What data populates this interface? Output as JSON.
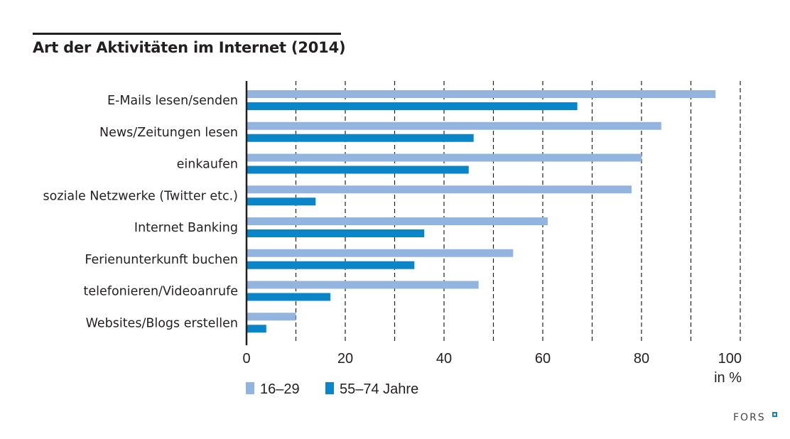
{
  "branding": {
    "logo_text": "FORS"
  },
  "colors": {
    "series_young": "#93b4df",
    "series_old": "#0a86c8",
    "axis": "#231f20"
  },
  "chart_data": {
    "type": "bar",
    "orientation": "horizontal",
    "title": "Art der Aktivitäten im Internet (2014)",
    "xlabel": "in %",
    "ylabel": "",
    "xlim": [
      0,
      100
    ],
    "xticks": [
      0,
      20,
      40,
      60,
      80,
      100
    ],
    "xtick_labels": [
      "0",
      "20",
      "40",
      "60",
      "80",
      "100"
    ],
    "grid": "vertical dashed every 10",
    "legend_position": "bottom-left",
    "categories": [
      "E-Mails lesen/senden",
      "News/Zeitungen lesen",
      "einkaufen",
      "soziale Netzwerke (Twitter etc.)",
      "Internet Banking",
      "Ferienunterkunft buchen",
      "telefonieren/Videoanrufe",
      "Websites/Blogs erstellen"
    ],
    "series": [
      {
        "name": "16–29",
        "color": "#93b4df",
        "values": [
          95,
          84,
          80,
          78,
          61,
          54,
          47,
          10
        ]
      },
      {
        "name": "55–74 Jahre",
        "color": "#0a86c8",
        "values": [
          67,
          46,
          45,
          14,
          36,
          34,
          17,
          4
        ]
      }
    ]
  }
}
